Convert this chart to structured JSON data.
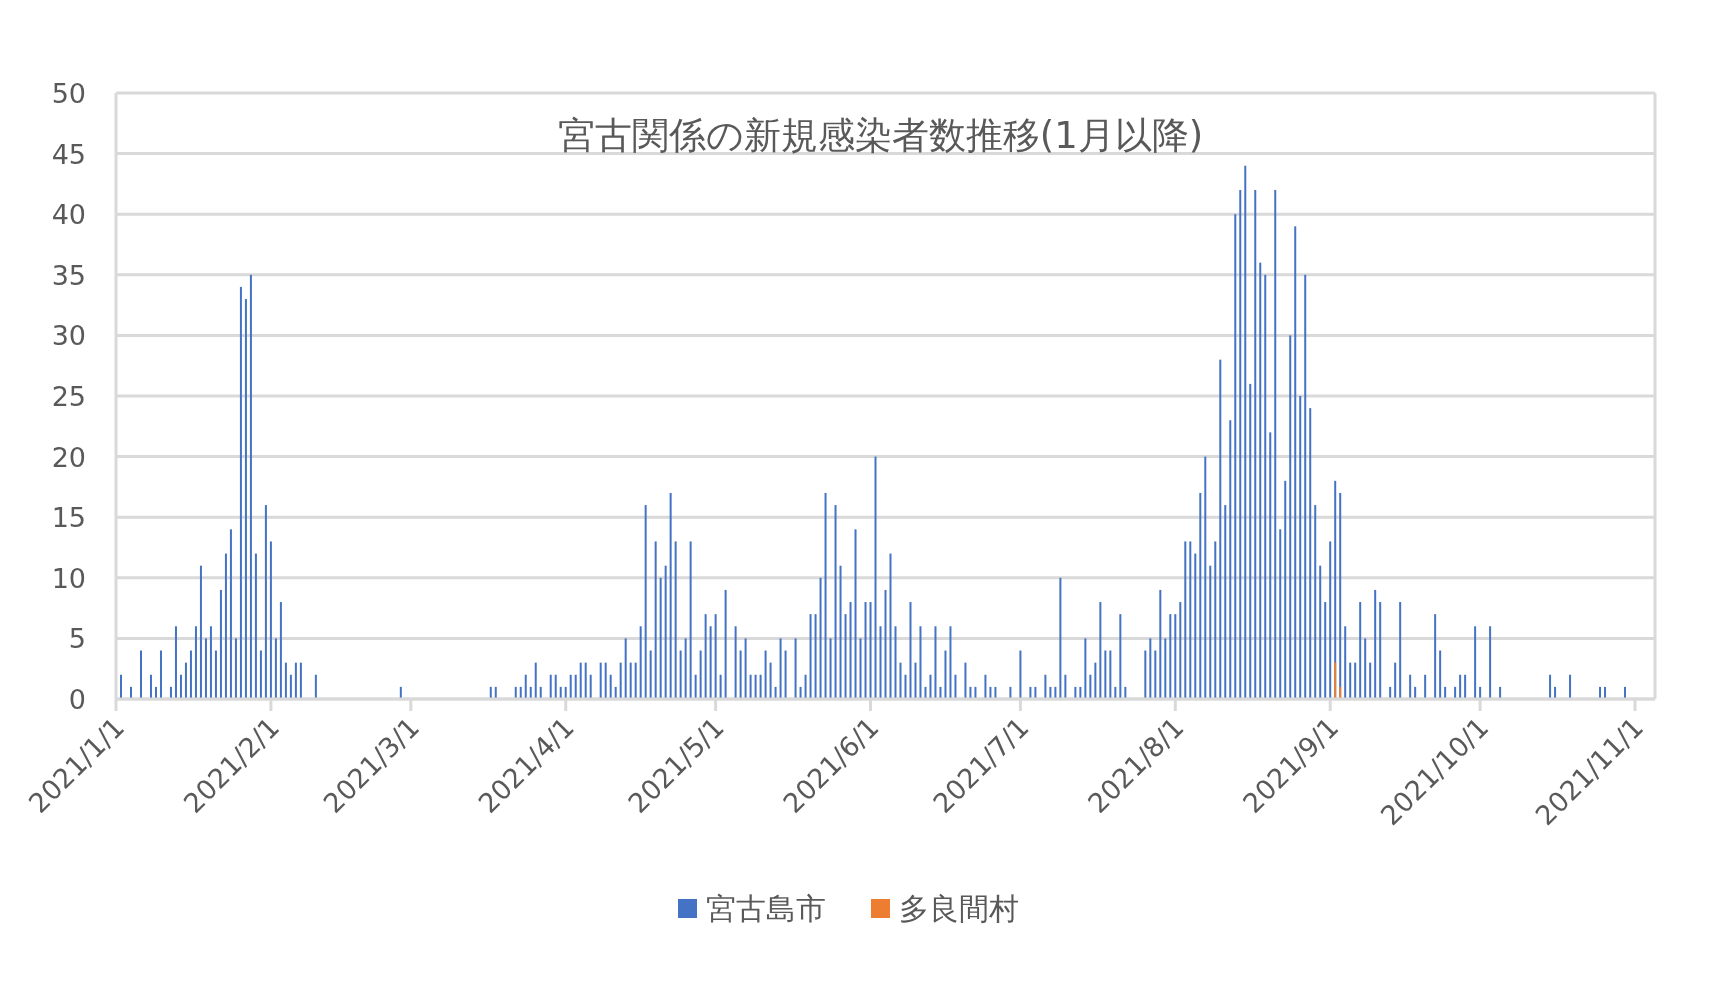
{
  "chart_data": {
    "type": "bar",
    "title": "宮古関係の新規感染者数推移(1月以降)",
    "xlim": [
      "2021-01-01",
      "2021-11-05"
    ],
    "ylim": [
      0,
      50
    ],
    "yticks": [
      0,
      5,
      10,
      15,
      20,
      25,
      30,
      35,
      40,
      45,
      50
    ],
    "xticks": [
      {
        "value": "2021-01-01",
        "label": "2021/1/1"
      },
      {
        "value": "2021-02-01",
        "label": "2021/2/1"
      },
      {
        "value": "2021-03-01",
        "label": "2021/3/1"
      },
      {
        "value": "2021-04-01",
        "label": "2021/4/1"
      },
      {
        "value": "2021-05-01",
        "label": "2021/5/1"
      },
      {
        "value": "2021-06-01",
        "label": "2021/6/1"
      },
      {
        "value": "2021-07-01",
        "label": "2021/7/1"
      },
      {
        "value": "2021-08-01",
        "label": "2021/8/1"
      },
      {
        "value": "2021-09-01",
        "label": "2021/9/1"
      },
      {
        "value": "2021-10-01",
        "label": "2021/10/1"
      },
      {
        "value": "2021-11-01",
        "label": "2021/11/1"
      }
    ],
    "grid": "y",
    "legend": "bottom",
    "series": [
      {
        "name": "宮古島市",
        "color": "#4472c4",
        "x": [
          "2021-01-02",
          "2021-01-04",
          "2021-01-06",
          "2021-01-08",
          "2021-01-09",
          "2021-01-10",
          "2021-01-12",
          "2021-01-13",
          "2021-01-14",
          "2021-01-15",
          "2021-01-16",
          "2021-01-17",
          "2021-01-18",
          "2021-01-19",
          "2021-01-20",
          "2021-01-21",
          "2021-01-22",
          "2021-01-23",
          "2021-01-24",
          "2021-01-25",
          "2021-01-26",
          "2021-01-27",
          "2021-01-28",
          "2021-01-29",
          "2021-01-30",
          "2021-01-31",
          "2021-02-01",
          "2021-02-02",
          "2021-02-03",
          "2021-02-04",
          "2021-02-05",
          "2021-02-06",
          "2021-02-07",
          "2021-02-10",
          "2021-02-27",
          "2021-03-17",
          "2021-03-18",
          "2021-03-22",
          "2021-03-23",
          "2021-03-24",
          "2021-03-25",
          "2021-03-26",
          "2021-03-27",
          "2021-03-29",
          "2021-03-30",
          "2021-03-31",
          "2021-04-01",
          "2021-04-02",
          "2021-04-03",
          "2021-04-04",
          "2021-04-05",
          "2021-04-06",
          "2021-04-08",
          "2021-04-09",
          "2021-04-10",
          "2021-04-11",
          "2021-04-12",
          "2021-04-13",
          "2021-04-14",
          "2021-04-15",
          "2021-04-16",
          "2021-04-17",
          "2021-04-18",
          "2021-04-19",
          "2021-04-20",
          "2021-04-21",
          "2021-04-22",
          "2021-04-23",
          "2021-04-24",
          "2021-04-25",
          "2021-04-26",
          "2021-04-27",
          "2021-04-28",
          "2021-04-29",
          "2021-04-30",
          "2021-05-01",
          "2021-05-02",
          "2021-05-03",
          "2021-05-05",
          "2021-05-06",
          "2021-05-07",
          "2021-05-08",
          "2021-05-09",
          "2021-05-10",
          "2021-05-11",
          "2021-05-12",
          "2021-05-13",
          "2021-05-14",
          "2021-05-15",
          "2021-05-17",
          "2021-05-18",
          "2021-05-19",
          "2021-05-20",
          "2021-05-21",
          "2021-05-22",
          "2021-05-23",
          "2021-05-24",
          "2021-05-25",
          "2021-05-26",
          "2021-05-27",
          "2021-05-28",
          "2021-05-29",
          "2021-05-30",
          "2021-05-31",
          "2021-06-01",
          "2021-06-02",
          "2021-06-03",
          "2021-06-04",
          "2021-06-05",
          "2021-06-06",
          "2021-06-07",
          "2021-06-08",
          "2021-06-09",
          "2021-06-10",
          "2021-06-11",
          "2021-06-12",
          "2021-06-13",
          "2021-06-14",
          "2021-06-15",
          "2021-06-16",
          "2021-06-17",
          "2021-06-18",
          "2021-06-20",
          "2021-06-21",
          "2021-06-22",
          "2021-06-24",
          "2021-06-25",
          "2021-06-26",
          "2021-06-29",
          "2021-07-01",
          "2021-07-03",
          "2021-07-04",
          "2021-07-06",
          "2021-07-07",
          "2021-07-08",
          "2021-07-09",
          "2021-07-10",
          "2021-07-12",
          "2021-07-13",
          "2021-07-14",
          "2021-07-15",
          "2021-07-16",
          "2021-07-17",
          "2021-07-18",
          "2021-07-19",
          "2021-07-20",
          "2021-07-21",
          "2021-07-22",
          "2021-07-26",
          "2021-07-27",
          "2021-07-28",
          "2021-07-29",
          "2021-07-30",
          "2021-07-31",
          "2021-08-01",
          "2021-08-02",
          "2021-08-03",
          "2021-08-04",
          "2021-08-05",
          "2021-08-06",
          "2021-08-07",
          "2021-08-08",
          "2021-08-09",
          "2021-08-10",
          "2021-08-11",
          "2021-08-12",
          "2021-08-13",
          "2021-08-14",
          "2021-08-15",
          "2021-08-16",
          "2021-08-17",
          "2021-08-18",
          "2021-08-19",
          "2021-08-20",
          "2021-08-21",
          "2021-08-22",
          "2021-08-23",
          "2021-08-24",
          "2021-08-25",
          "2021-08-26",
          "2021-08-27",
          "2021-08-28",
          "2021-08-29",
          "2021-08-30",
          "2021-08-31",
          "2021-09-01",
          "2021-09-02",
          "2021-09-03",
          "2021-09-04",
          "2021-09-05",
          "2021-09-06",
          "2021-09-07",
          "2021-09-08",
          "2021-09-09",
          "2021-09-10",
          "2021-09-11",
          "2021-09-13",
          "2021-09-14",
          "2021-09-15",
          "2021-09-17",
          "2021-09-18",
          "2021-09-20",
          "2021-09-22",
          "2021-09-23",
          "2021-09-24",
          "2021-09-26",
          "2021-09-27",
          "2021-09-28",
          "2021-09-30",
          "2021-10-01",
          "2021-10-03",
          "2021-10-05",
          "2021-10-15",
          "2021-10-16",
          "2021-10-19",
          "2021-10-25",
          "2021-10-26",
          "2021-10-30"
        ],
        "values": [
          2,
          1,
          4,
          2,
          1,
          4,
          1,
          6,
          2,
          3,
          4,
          6,
          11,
          5,
          6,
          4,
          9,
          12,
          14,
          5,
          34,
          33,
          35,
          12,
          4,
          16,
          13,
          5,
          8,
          3,
          2,
          3,
          3,
          2,
          1,
          1,
          1,
          1,
          1,
          2,
          1,
          3,
          1,
          2,
          2,
          1,
          1,
          2,
          2,
          3,
          3,
          2,
          3,
          3,
          2,
          1,
          3,
          5,
          3,
          3,
          6,
          16,
          4,
          13,
          10,
          11,
          17,
          13,
          4,
          5,
          13,
          2,
          4,
          7,
          6,
          7,
          2,
          9,
          6,
          4,
          5,
          2,
          2,
          2,
          4,
          3,
          1,
          5,
          4,
          5,
          1,
          2,
          7,
          7,
          10,
          17,
          5,
          16,
          11,
          7,
          8,
          14,
          5,
          8,
          8,
          20,
          6,
          9,
          12,
          6,
          3,
          2,
          8,
          3,
          6,
          1,
          2,
          6,
          1,
          4,
          6,
          2,
          3,
          1,
          1,
          2,
          1,
          1,
          1,
          4,
          1,
          1,
          2,
          1,
          1,
          10,
          2,
          1,
          1,
          5,
          2,
          3,
          8,
          4,
          4,
          1,
          7,
          1,
          4,
          5,
          4,
          9,
          5,
          7,
          7,
          8,
          13,
          13,
          12,
          17,
          20,
          11,
          13,
          28,
          16,
          23,
          40,
          42,
          44,
          26,
          42,
          36,
          35,
          22,
          42,
          14,
          18,
          30,
          39,
          25,
          35,
          24,
          16,
          11,
          8,
          13,
          18,
          17,
          6,
          3,
          3,
          8,
          5,
          3,
          9,
          8,
          1,
          3,
          8,
          2,
          1,
          2,
          7,
          4,
          1,
          1,
          2,
          2,
          6,
          1,
          6,
          1,
          2,
          1,
          2,
          1,
          1,
          1
        ]
      },
      {
        "name": "多良間村",
        "color": "#ed7d31",
        "x": [
          "2021-09-02",
          "2021-09-03"
        ],
        "values": [
          3,
          1
        ]
      }
    ]
  }
}
